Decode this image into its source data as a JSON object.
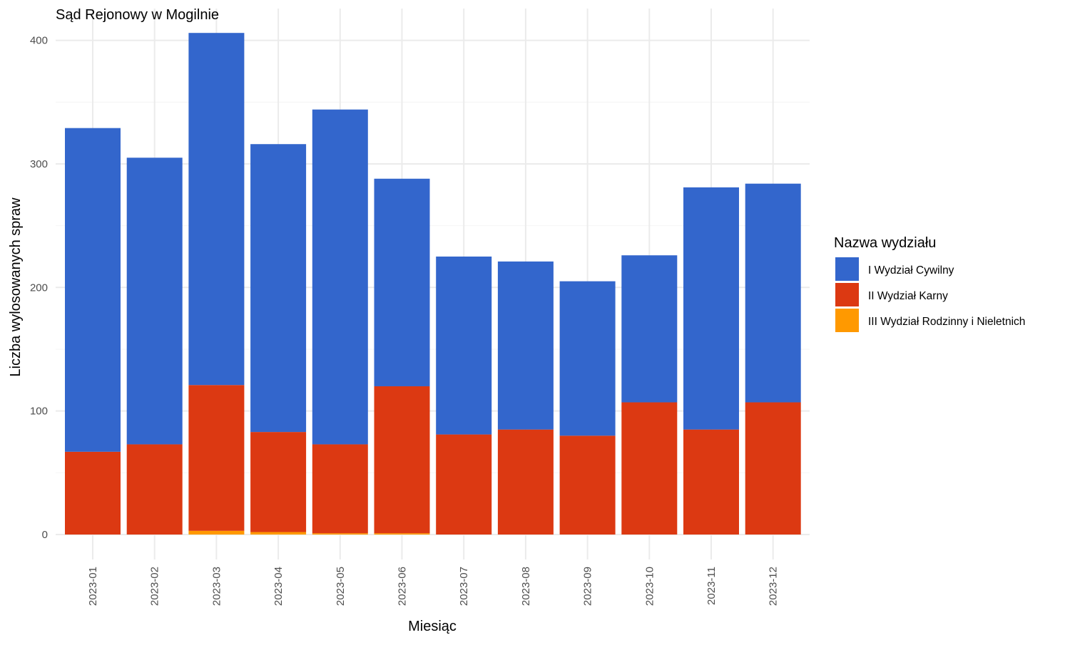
{
  "chart_data": {
    "type": "bar",
    "stacked": true,
    "title": "Sąd Rejonowy w Mogilnie",
    "xlabel": "Miesiąc",
    "ylabel": "Liczba wylosowanych spraw",
    "ylim": [
      0,
      410
    ],
    "yticks": [
      "0",
      "100",
      "200",
      "300",
      "400"
    ],
    "grid": true,
    "legend_position": "right",
    "legend_title": "Nazwa wydziału",
    "categories": [
      "2023-01",
      "2023-02",
      "2023-03",
      "2023-04",
      "2023-05",
      "2023-06",
      "2023-07",
      "2023-08",
      "2023-09",
      "2023-10",
      "2023-11",
      "2023-12"
    ],
    "series": [
      {
        "name": "I Wydział Cywilny",
        "color": "#3366cc",
        "values": [
          262,
          232,
          285,
          233,
          271,
          168,
          144,
          136,
          125,
          119,
          196,
          177
        ]
      },
      {
        "name": "II Wydział Karny",
        "color": "#dc3912",
        "values": [
          67,
          73,
          118,
          81,
          72,
          119,
          81,
          85,
          80,
          107,
          85,
          107
        ]
      },
      {
        "name": "III Wydział Rodzinny i Nieletnich",
        "color": "#ff9900",
        "values": [
          0,
          0,
          3,
          2,
          1,
          1,
          0,
          0,
          0,
          0,
          0,
          0
        ]
      }
    ]
  }
}
